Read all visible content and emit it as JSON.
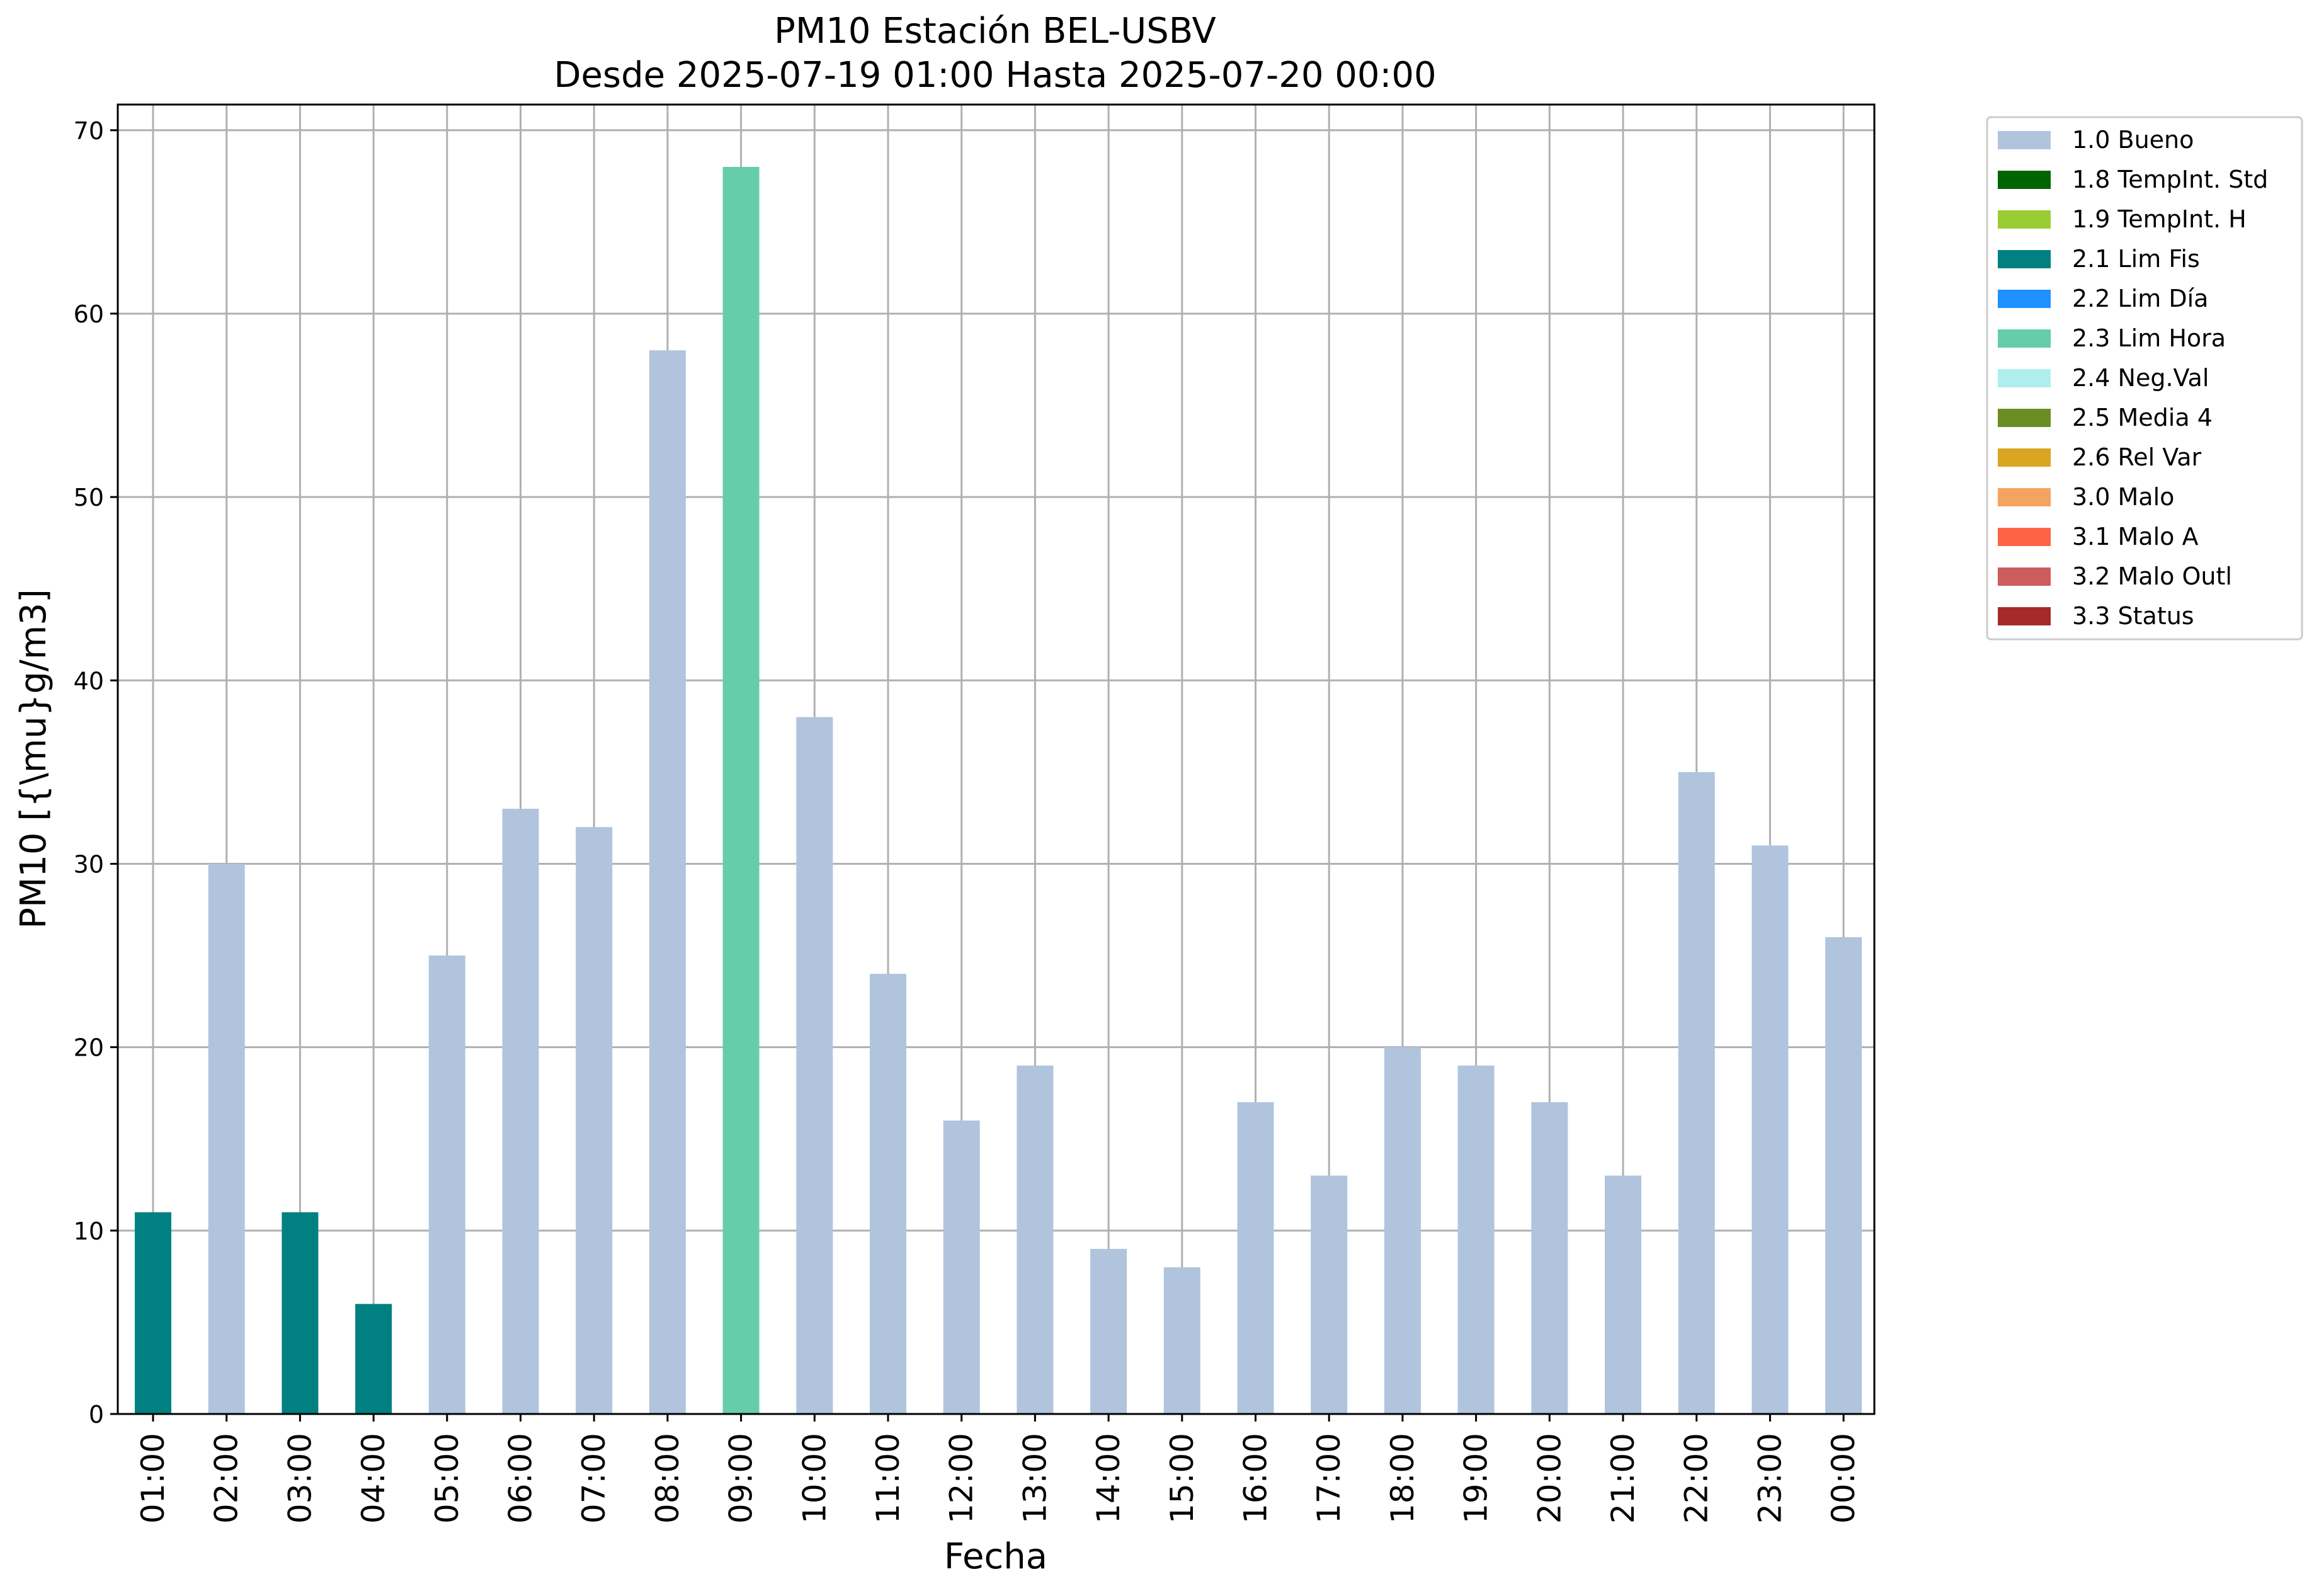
{
  "chart_data": {
    "type": "bar",
    "title_line1": "PM10 Estación BEL-USBV",
    "title_line2": "Desde 2025-07-19 01:00 Hasta 2025-07-20 00:00",
    "xlabel": "Fecha",
    "ylabel": "PM10 [{\\mu}g/m3]",
    "ylim": [
      0,
      71.4
    ],
    "yticks": [
      0,
      10,
      20,
      30,
      40,
      50,
      60,
      70
    ],
    "grid": true,
    "legend_position": "outside top-right",
    "categories": [
      "01:00",
      "02:00",
      "03:00",
      "04:00",
      "05:00",
      "06:00",
      "07:00",
      "08:00",
      "09:00",
      "10:00",
      "11:00",
      "12:00",
      "13:00",
      "14:00",
      "15:00",
      "16:00",
      "17:00",
      "18:00",
      "19:00",
      "20:00",
      "21:00",
      "22:00",
      "23:00",
      "00:00"
    ],
    "values": [
      11,
      30,
      11,
      6,
      25,
      33,
      32,
      58,
      68,
      38,
      24,
      16,
      19,
      9,
      8,
      17,
      13,
      20,
      19,
      17,
      13,
      35,
      31,
      26
    ],
    "flags": [
      "2.1 Lim Fis",
      "1.0 Bueno",
      "2.1 Lim Fis",
      "2.1 Lim Fis",
      "1.0 Bueno",
      "1.0 Bueno",
      "1.0 Bueno",
      "1.0 Bueno",
      "2.3 Lim Hora",
      "1.0 Bueno",
      "1.0 Bueno",
      "1.0 Bueno",
      "1.0 Bueno",
      "1.0 Bueno",
      "1.0 Bueno",
      "1.0 Bueno",
      "1.0 Bueno",
      "1.0 Bueno",
      "1.0 Bueno",
      "1.0 Bueno",
      "1.0 Bueno",
      "1.0 Bueno",
      "1.0 Bueno",
      "1.0 Bueno"
    ],
    "legend": [
      {
        "label": "1.0 Bueno",
        "color": "#b0c4de"
      },
      {
        "label": "1.8 TempInt. Std",
        "color": "#006400"
      },
      {
        "label": "1.9 TempInt. H",
        "color": "#9acd32"
      },
      {
        "label": "2.1 Lim Fis",
        "color": "#008080"
      },
      {
        "label": "2.2 Lim Día",
        "color": "#1e90ff"
      },
      {
        "label": "2.3 Lim Hora",
        "color": "#66cdaa"
      },
      {
        "label": "2.4 Neg.Val",
        "color": "#afeeee"
      },
      {
        "label": "2.5 Media 4",
        "color": "#6b8e23"
      },
      {
        "label": "2.6 Rel Var",
        "color": "#daa520"
      },
      {
        "label": "3.0 Malo",
        "color": "#f4a460"
      },
      {
        "label": "3.1 Malo A",
        "color": "#ff6347"
      },
      {
        "label": "3.2 Malo Outl",
        "color": "#cd5c5c"
      },
      {
        "label": "3.3 Status",
        "color": "#a52a2a"
      }
    ]
  }
}
